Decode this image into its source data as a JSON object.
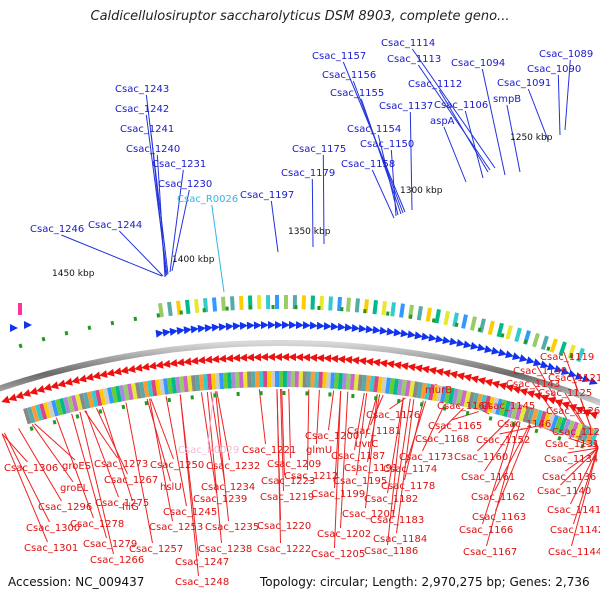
{
  "title": "Caldicellulosiruptor saccharolyticus DSM 8903, complete geno...",
  "footer": {
    "accession": "Accession: NC_009437",
    "summary": "Topology: circular; Length: 2,970,275 bp; Genes: 2,736"
  },
  "colors": {
    "forward_label": "#1a1acc",
    "rna_label": "#33b5e5",
    "reverse_label": "#dd1111",
    "highlight_label": "#f2b8d8",
    "backbone": "#777777",
    "tick_mark": "#229922"
  },
  "scale_labels": [
    "1250 kbp",
    "1300 kbp",
    "1350 kbp",
    "1400 kbp",
    "1450 kbp"
  ],
  "forward_labels": [
    "Csac_1114",
    "Csac_1113",
    "Csac_1094",
    "Csac_1089",
    "Csac_1090",
    "Csac_1091",
    "smpB",
    "Csac_1112",
    "Csac_1106",
    "aspA",
    "Csac_1157",
    "Csac_1156",
    "Csac_1155",
    "Csac_1137",
    "Csac_1154",
    "Csac_1150",
    "Csac_1158",
    "Csac_1175",
    "Csac_1179",
    "Csac_1197",
    "Csac_1243",
    "Csac_1242",
    "Csac_1241",
    "Csac_1240",
    "Csac_1231",
    "Csac_1230",
    "Csac_1246",
    "Csac_1244"
  ],
  "rna_labels": [
    "Csac_R0026"
  ],
  "reverse_labels": [
    "Csac_1119",
    "Csac_1121",
    "Csac_1125",
    "Csac_1126",
    "Csac_1128",
    "Csac_1131",
    "Csac_1134",
    "Csac_1136",
    "Csac_1140",
    "Csac_1141",
    "Csac_1142",
    "Csac_1144",
    "Csac_1139",
    "Csac_1143",
    "Csac_1145",
    "Csac_1146",
    "Csac_1152",
    "murB",
    "Csac_1164",
    "Csac_1165",
    "Csac_1168",
    "Csac_1160",
    "Csac_1161",
    "Csac_1162",
    "Csac_1163",
    "Csac_1166",
    "Csac_1167",
    "Csac_1176",
    "Csac_1181",
    "Csac_1173",
    "Csac_1174",
    "Csac_1200",
    "glmU",
    "Csac_1187",
    "uvrC",
    "Csac_1191",
    "Csac_1195",
    "Csac_1178",
    "Csac_1182",
    "Csac_1199",
    "Csac_1201",
    "Csac_1183",
    "Csac_1184",
    "Csac_1186",
    "Csac_1202",
    "Csac_1205",
    "Csac_1221",
    "Csac_1209",
    "Csac_1212",
    "Csac_1223",
    "Csac_1219",
    "Csac_1220",
    "Csac_1222",
    "Csac_1232",
    "Csac_1234",
    "Csac_1239",
    "Csac_1235",
    "Csac_1238",
    "Csac_1250",
    "hslU",
    "Csac_1245",
    "Csac_1253",
    "Csac_1247",
    "Csac_1248",
    "Csac_1273",
    "Csac_1267",
    "Csac_1275",
    "fliG",
    "Csac_1257",
    "Csac_1278",
    "Csac_1279",
    "Csac_1266",
    "Csac_1306",
    "groES",
    "groEL",
    "Csac_1296",
    "Csac_1300",
    "Csac_1301"
  ],
  "highlight_labels": [
    "Csac_R0029"
  ]
}
